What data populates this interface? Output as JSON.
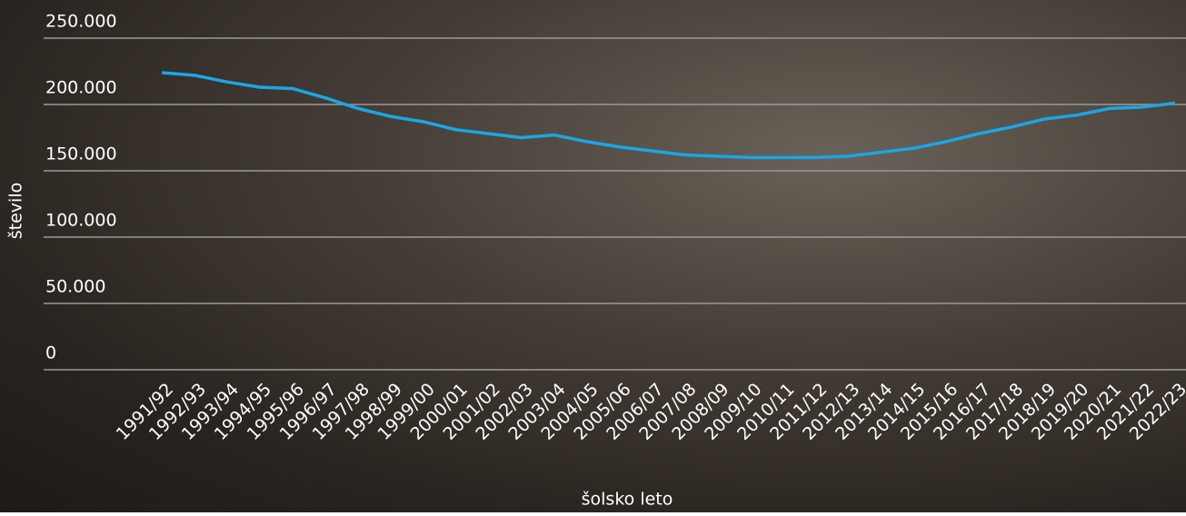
{
  "chart_data": {
    "type": "line",
    "x_label": "šolsko leto",
    "y_label": "število",
    "categories": [
      "1991/92",
      "1992/93",
      "1993/94",
      "1994/95",
      "1995/96",
      "1996/97",
      "1997/98",
      "1998/99",
      "1999/00",
      "2000/01",
      "2001/02",
      "2002/03",
      "2003/04",
      "2004/05",
      "2005/06",
      "2006/07",
      "2007/08",
      "2008/09",
      "2009/10",
      "2010/11",
      "2011/12",
      "2012/13",
      "2013/14",
      "2014/15",
      "2015/16",
      "2016/17",
      "2017/18",
      "2018/19",
      "2019/20",
      "2020/21",
      "2021/22",
      "2022/23"
    ],
    "values": [
      224000,
      222000,
      217000,
      213000,
      212000,
      205000,
      197000,
      191000,
      187000,
      181000,
      178000,
      175000,
      177000,
      172000,
      168000,
      165000,
      162000,
      161000,
      160000,
      160000,
      160000,
      161000,
      164000,
      167000,
      172000,
      178000,
      183000,
      189000,
      192000,
      197000,
      198000,
      201000
    ],
    "color": "#1aa6e6",
    "ylim": [
      0,
      250000
    ],
    "yticks": [
      0,
      {
        "value": 50000,
        "label": "50.000"
      },
      {
        "value": 100000,
        "label": "100.000"
      },
      {
        "value": 150000,
        "label": "150.000"
      },
      {
        "value": 200000,
        "label": "200.000"
      },
      {
        "value": 250000,
        "label": "250.000"
      }
    ],
    "grid": true
  }
}
